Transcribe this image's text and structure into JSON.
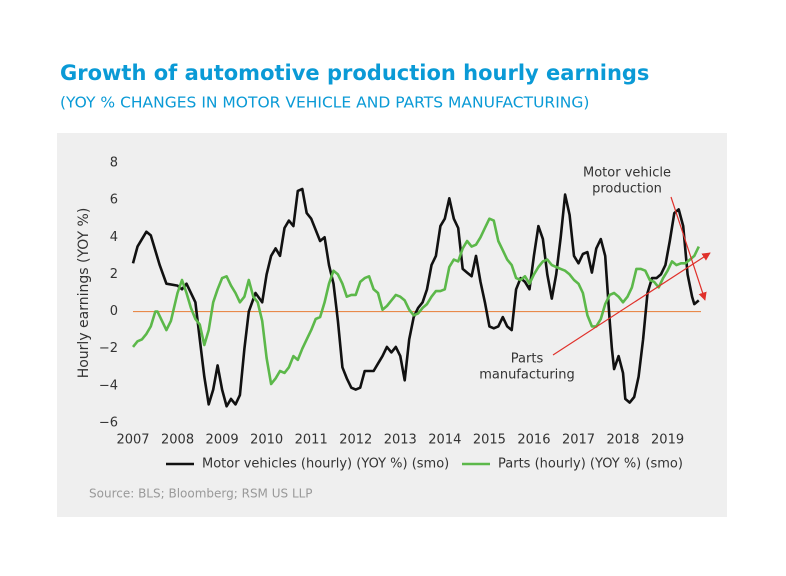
{
  "chart_data": {
    "type": "line",
    "title": "Growth of automotive production hourly earnings",
    "subtitle": "(YOY % CHANGES IN MOTOR VEHICLE AND PARTS MANUFACTURING)",
    "y_label": "Hourly earnings (YOY %)",
    "source": "Source: BLS; Bloomberg; RSM US LLP",
    "xlim": [
      2007,
      2019.75
    ],
    "xticks": [
      2007,
      2008,
      2009,
      2010,
      2011,
      2012,
      2013,
      2014,
      2015,
      2016,
      2017,
      2018,
      2019
    ],
    "ylim": [
      -6,
      8
    ],
    "yticks": [
      {
        "value": -6,
        "label": "−6"
      },
      {
        "value": -4,
        "label": "−4"
      },
      {
        "value": -2,
        "label": "−2"
      },
      0,
      2,
      4,
      6,
      8
    ],
    "zero_line_color": "#e8894a",
    "legend": "bottom",
    "annotations": [
      {
        "lines": [
          "Motor vehicle",
          "production"
        ],
        "arrow_color": "#e0312b"
      },
      {
        "lines": [
          "Parts",
          "manufacturing"
        ],
        "arrow_color": "#e0312b"
      }
    ],
    "series": [
      {
        "name": "Motor vehicles (hourly) (YOY %) (smo)",
        "color": "#111111",
        "x": [
          2007.0,
          2007.1,
          2007.3,
          2007.4,
          2007.6,
          2007.75,
          2008.0,
          2008.1,
          2008.2,
          2008.4,
          2008.5,
          2008.6,
          2008.7,
          2008.8,
          2008.9,
          2009.0,
          2009.1,
          2009.2,
          2009.3,
          2009.4,
          2009.5,
          2009.6,
          2009.75,
          2009.9,
          2010.0,
          2010.1,
          2010.2,
          2010.3,
          2010.4,
          2010.5,
          2010.6,
          2010.7,
          2010.8,
          2010.9,
          2011.0,
          2011.2,
          2011.3,
          2011.4,
          2011.5,
          2011.6,
          2011.7,
          2011.8,
          2011.9,
          2012.0,
          2012.1,
          2012.2,
          2012.3,
          2012.4,
          2012.5,
          2012.6,
          2012.7,
          2012.8,
          2012.9,
          2013.0,
          2013.1,
          2013.2,
          2013.3,
          2013.4,
          2013.5,
          2013.6,
          2013.7,
          2013.8,
          2013.9,
          2014.0,
          2014.1,
          2014.2,
          2014.3,
          2014.4,
          2014.5,
          2014.6,
          2014.7,
          2014.8,
          2014.9,
          2015.0,
          2015.1,
          2015.2,
          2015.3,
          2015.4,
          2015.5,
          2015.6,
          2015.7,
          2015.8,
          2015.9,
          2016.0,
          2016.1,
          2016.2,
          2016.3,
          2016.4,
          2016.5,
          2016.6,
          2016.7,
          2016.8,
          2016.9,
          2017.0,
          2017.1,
          2017.2,
          2017.3,
          2017.4,
          2017.5,
          2017.6,
          2017.7,
          2017.75,
          2017.8,
          2017.9,
          2018.0,
          2018.05,
          2018.15,
          2018.25,
          2018.35,
          2018.45,
          2018.55,
          2018.65,
          2018.75,
          2018.85,
          2018.95,
          2019.05,
          2019.15,
          2019.25,
          2019.35,
          2019.45,
          2019.55,
          2019.6,
          2019.7
        ],
        "values": [
          2.6,
          3.5,
          4.3,
          4.1,
          2.5,
          1.5,
          1.4,
          1.2,
          1.5,
          0.5,
          -1.5,
          -3.5,
          -5.0,
          -4.2,
          -2.9,
          -4.2,
          -5.1,
          -4.7,
          -5.0,
          -4.5,
          -2.0,
          0.0,
          1.0,
          0.5,
          2.0,
          3.0,
          3.4,
          3.0,
          4.5,
          4.9,
          4.6,
          6.5,
          6.6,
          5.3,
          5.0,
          3.8,
          4.0,
          2.5,
          1.5,
          -0.5,
          -3.0,
          -3.6,
          -4.1,
          -4.2,
          -4.1,
          -3.2,
          -3.2,
          -3.2,
          -2.8,
          -2.4,
          -1.9,
          -2.2,
          -1.9,
          -2.4,
          -3.7,
          -1.5,
          -0.3,
          0.2,
          0.5,
          1.2,
          2.5,
          3.0,
          4.6,
          5.0,
          6.1,
          5.0,
          4.5,
          2.3,
          2.1,
          1.9,
          3.0,
          1.6,
          0.5,
          -0.8,
          -0.9,
          -0.8,
          -0.3,
          -0.8,
          -1.0,
          1.2,
          1.8,
          1.6,
          1.2,
          3.0,
          4.6,
          3.9,
          2.0,
          0.7,
          2.0,
          4.0,
          6.3,
          5.2,
          3.0,
          2.6,
          3.1,
          3.2,
          2.1,
          3.4,
          3.9,
          3.0,
          -0.5,
          -2.0,
          -3.1,
          -2.4,
          -3.3,
          -4.7,
          -4.9,
          -4.6,
          -3.5,
          -1.5,
          1.0,
          1.8,
          1.8,
          2.0,
          2.5,
          3.8,
          5.3,
          5.5,
          4.6,
          2.0,
          0.8,
          0.4,
          0.6
        ]
      },
      {
        "name": "Parts (hourly) (YOY %) (smo)",
        "color": "#5cb84a",
        "x": [
          2007.0,
          2007.1,
          2007.2,
          2007.3,
          2007.4,
          2007.5,
          2007.55,
          2007.65,
          2007.75,
          2007.85,
          2008.0,
          2008.1,
          2008.2,
          2008.3,
          2008.4,
          2008.5,
          2008.6,
          2008.7,
          2008.8,
          2008.9,
          2009.0,
          2009.1,
          2009.2,
          2009.3,
          2009.4,
          2009.5,
          2009.6,
          2009.7,
          2009.8,
          2009.9,
          2010.0,
          2010.1,
          2010.2,
          2010.3,
          2010.4,
          2010.5,
          2010.6,
          2010.7,
          2010.8,
          2010.9,
          2011.0,
          2011.1,
          2011.2,
          2011.3,
          2011.4,
          2011.5,
          2011.6,
          2011.7,
          2011.8,
          2011.9,
          2012.0,
          2012.1,
          2012.2,
          2012.3,
          2012.4,
          2012.5,
          2012.6,
          2012.7,
          2012.8,
          2012.9,
          2013.0,
          2013.1,
          2013.2,
          2013.3,
          2013.4,
          2013.5,
          2013.6,
          2013.7,
          2013.8,
          2013.9,
          2014.0,
          2014.1,
          2014.2,
          2014.3,
          2014.4,
          2014.5,
          2014.6,
          2014.7,
          2014.8,
          2014.9,
          2015.0,
          2015.1,
          2015.2,
          2015.3,
          2015.4,
          2015.5,
          2015.6,
          2015.7,
          2015.8,
          2015.9,
          2016.0,
          2016.1,
          2016.2,
          2016.3,
          2016.4,
          2016.5,
          2016.6,
          2016.7,
          2016.8,
          2016.9,
          2017.0,
          2017.1,
          2017.2,
          2017.3,
          2017.4,
          2017.5,
          2017.6,
          2017.7,
          2017.8,
          2017.9,
          2018.0,
          2018.1,
          2018.2,
          2018.3,
          2018.4,
          2018.5,
          2018.6,
          2018.7,
          2018.8,
          2018.9,
          2019.0,
          2019.1,
          2019.2,
          2019.3,
          2019.4,
          2019.5,
          2019.6,
          2019.7
        ],
        "values": [
          -1.9,
          -1.6,
          -1.5,
          -1.2,
          -0.8,
          0.0,
          0.0,
          -0.5,
          -1.0,
          -0.5,
          1.0,
          1.7,
          1.0,
          0.2,
          -0.4,
          -0.7,
          -1.8,
          -1.0,
          0.5,
          1.2,
          1.8,
          1.9,
          1.4,
          1.0,
          0.5,
          0.8,
          1.7,
          0.8,
          0.5,
          -0.5,
          -2.5,
          -3.9,
          -3.6,
          -3.2,
          -3.3,
          -3.0,
          -2.4,
          -2.6,
          -2.0,
          -1.5,
          -1.0,
          -0.4,
          -0.3,
          0.5,
          1.5,
          2.2,
          2.0,
          1.5,
          0.8,
          0.9,
          0.9,
          1.6,
          1.8,
          1.9,
          1.2,
          1.0,
          0.1,
          0.3,
          0.6,
          0.9,
          0.8,
          0.6,
          0.1,
          -0.2,
          -0.1,
          0.2,
          0.4,
          0.8,
          1.1,
          1.1,
          1.2,
          2.4,
          2.8,
          2.7,
          3.4,
          3.8,
          3.5,
          3.6,
          4.0,
          4.5,
          5.0,
          4.9,
          3.8,
          3.3,
          2.8,
          2.5,
          1.8,
          1.7,
          1.9,
          1.5,
          2.0,
          2.4,
          2.7,
          2.8,
          2.5,
          2.4,
          2.3,
          2.2,
          2.0,
          1.7,
          1.5,
          1.0,
          -0.2,
          -0.8,
          -0.8,
          -0.4,
          0.4,
          0.9,
          1.0,
          0.8,
          0.5,
          0.8,
          1.3,
          2.3,
          2.3,
          2.2,
          1.7,
          1.6,
          1.3,
          1.8,
          2.2,
          2.7,
          2.5,
          2.6,
          2.6,
          2.8,
          3.0,
          3.5
        ]
      }
    ]
  }
}
